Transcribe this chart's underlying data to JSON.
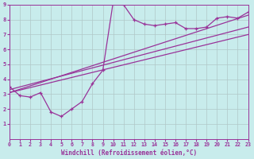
{
  "background_color": "#c8ecec",
  "line_color": "#993399",
  "grid_color": "#b0c8c8",
  "xlabel": "Windchill (Refroidissement éolien,°C)",
  "xlabel_color": "#993399",
  "tick_color": "#993399",
  "xmin": 0,
  "xmax": 23,
  "ymin": 0,
  "ymax": 9,
  "xticks": [
    0,
    1,
    2,
    3,
    4,
    5,
    6,
    7,
    8,
    9,
    10,
    11,
    12,
    13,
    14,
    15,
    16,
    17,
    18,
    19,
    20,
    21,
    22,
    23
  ],
  "yticks": [
    1,
    2,
    3,
    4,
    5,
    6,
    7,
    8,
    9
  ],
  "series1_x": [
    0,
    1,
    2,
    3,
    4,
    5,
    6,
    7,
    8,
    9,
    10,
    11,
    12,
    13,
    14,
    15,
    16,
    17,
    18,
    19,
    20,
    21,
    22,
    23
  ],
  "series1_y": [
    3.5,
    2.9,
    2.8,
    3.1,
    1.8,
    1.5,
    2.0,
    2.5,
    3.7,
    4.6,
    9.2,
    9.0,
    8.0,
    7.7,
    7.6,
    7.7,
    7.8,
    7.4,
    7.4,
    7.5,
    8.1,
    8.2,
    8.1,
    8.5
  ],
  "series2_x": [
    0,
    23
  ],
  "series2_y": [
    3.3,
    7.5
  ],
  "series3_x": [
    0,
    23
  ],
  "series3_y": [
    3.1,
    8.3
  ],
  "series4_x": [
    0,
    23
  ],
  "series4_y": [
    3.1,
    7.0
  ]
}
